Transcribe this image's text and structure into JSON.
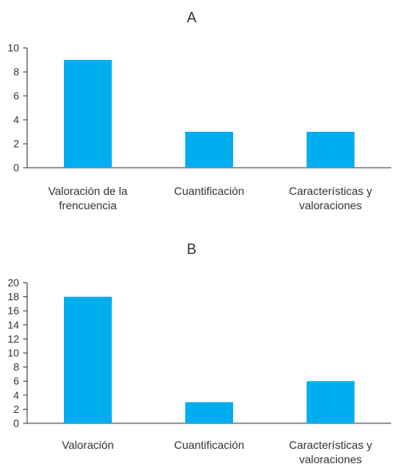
{
  "chart_data": [
    {
      "type": "bar",
      "title": "A",
      "categories": [
        [
          "Valoración de la",
          "frencuencia"
        ],
        [
          "Cuantificación"
        ],
        [
          "Características y",
          "valoraciones"
        ]
      ],
      "values": [
        9,
        3,
        3
      ],
      "ylim": [
        0,
        10
      ],
      "yticks": [
        0,
        2,
        4,
        6,
        8,
        10
      ],
      "grid": false,
      "bar_color": "#00AEEF"
    },
    {
      "type": "bar",
      "title": "B",
      "categories": [
        [
          "Valoración"
        ],
        [
          "Cuantificación"
        ],
        [
          "Características y",
          "valoraciones"
        ]
      ],
      "values": [
        18,
        3,
        6
      ],
      "ylim": [
        0,
        20
      ],
      "yticks": [
        0,
        2,
        4,
        6,
        8,
        10,
        12,
        14,
        16,
        18,
        20
      ],
      "grid": false,
      "bar_color": "#00AEEF"
    }
  ]
}
